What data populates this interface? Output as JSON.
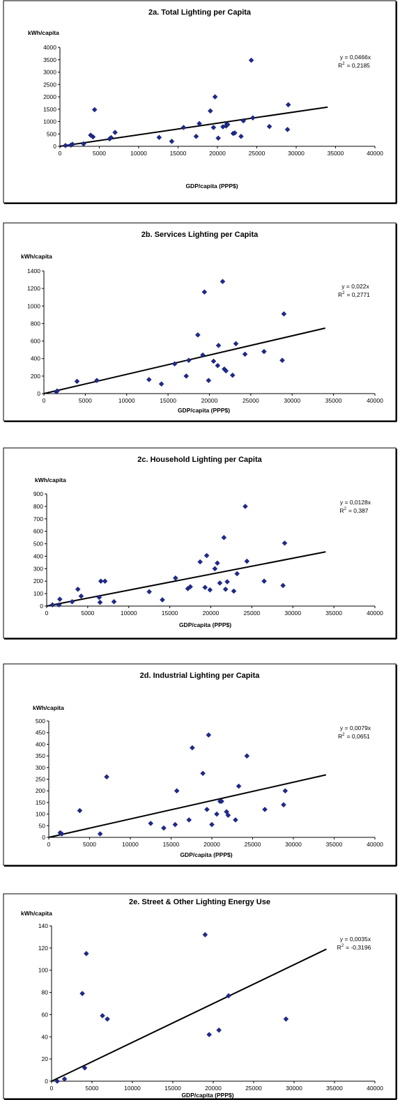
{
  "chart_data": [
    {
      "type": "scatter",
      "title": "2a.  Total  Lighting  per  Capita",
      "ylabel": "kWh/capita",
      "xlabel": "GDP/capita    (PPP$)",
      "xlim": [
        0,
        40000
      ],
      "ylim": [
        0,
        4000
      ],
      "xticks": [
        "0",
        "5000",
        "10000",
        "15000",
        "20000",
        "25000",
        "30000",
        "35000",
        "40000"
      ],
      "yticks": [
        "0",
        "500",
        "1000",
        "1500",
        "2000",
        "2500",
        "3000",
        "3500",
        "4000"
      ],
      "trendline": {
        "slope": 0.0466,
        "x_end": 34000,
        "eq": "y  =  0,0466x",
        "r2": "= 0,2185"
      },
      "grid": false,
      "points": [
        [
          700,
          30
        ],
        [
          1400,
          50
        ],
        [
          1600,
          80
        ],
        [
          3000,
          100
        ],
        [
          3900,
          450
        ],
        [
          4200,
          380
        ],
        [
          4400,
          1480
        ],
        [
          6300,
          300
        ],
        [
          6500,
          350
        ],
        [
          7000,
          560
        ],
        [
          12600,
          360
        ],
        [
          14200,
          200
        ],
        [
          15700,
          760
        ],
        [
          17300,
          400
        ],
        [
          17700,
          920
        ],
        [
          19100,
          1430
        ],
        [
          19500,
          760
        ],
        [
          19700,
          2000
        ],
        [
          20100,
          330
        ],
        [
          20700,
          790
        ],
        [
          21100,
          820
        ],
        [
          21200,
          900
        ],
        [
          21300,
          880
        ],
        [
          22000,
          520
        ],
        [
          22200,
          540
        ],
        [
          23000,
          400
        ],
        [
          23300,
          1030
        ],
        [
          24300,
          3480
        ],
        [
          24500,
          1150
        ],
        [
          26600,
          800
        ],
        [
          28900,
          680
        ],
        [
          29000,
          1680
        ]
      ]
    },
    {
      "type": "scatter",
      "title": "2b.  Services  Lighting  per  Capita",
      "ylabel": "kWh/capita",
      "xlabel": "GDP/capita    (PPP$)",
      "xlim": [
        0,
        40000
      ],
      "ylim": [
        0,
        1400
      ],
      "xticks": [
        "0",
        "5000",
        "10000",
        "15000",
        "20000",
        "25000",
        "30000",
        "35000",
        "40000"
      ],
      "yticks": [
        "0",
        "200",
        "400",
        "600",
        "800",
        "1000",
        "1200",
        "1400"
      ],
      "trendline": {
        "slope": 0.022,
        "x_end": 34000,
        "eq": "y  =  0,022x",
        "r2": "= 0,2771"
      },
      "grid": false,
      "points": [
        [
          1500,
          20
        ],
        [
          1600,
          30
        ],
        [
          4000,
          140
        ],
        [
          6400,
          150
        ],
        [
          12700,
          160
        ],
        [
          14200,
          110
        ],
        [
          15800,
          340
        ],
        [
          17200,
          200
        ],
        [
          17500,
          380
        ],
        [
          18600,
          670
        ],
        [
          19200,
          440
        ],
        [
          19400,
          1160
        ],
        [
          19900,
          150
        ],
        [
          20500,
          370
        ],
        [
          21000,
          320
        ],
        [
          21100,
          550
        ],
        [
          21600,
          1280
        ],
        [
          21800,
          280
        ],
        [
          22000,
          260
        ],
        [
          22800,
          210
        ],
        [
          23200,
          570
        ],
        [
          24300,
          450
        ],
        [
          26600,
          480
        ],
        [
          28800,
          380
        ],
        [
          29000,
          910
        ]
      ]
    },
    {
      "type": "scatter",
      "title": "2c.  Household  Lighting  per  Capita",
      "ylabel": "kWh/capita",
      "xlabel": "GDP/capita    (PPP$)",
      "xlim": [
        0,
        40000
      ],
      "ylim": [
        0,
        900
      ],
      "xticks": [
        "0",
        "5000",
        "10000",
        "15000",
        "20000",
        "25000",
        "30000",
        "35000",
        "40000"
      ],
      "yticks": [
        "0",
        "100",
        "200",
        "300",
        "400",
        "500",
        "600",
        "700",
        "800",
        "900"
      ],
      "trendline": {
        "slope": 0.0128,
        "x_end": 34000,
        "eq": "y  =  0,0128x",
        "r2": "= 0,387"
      },
      "grid": false,
      "points": [
        [
          700,
          10
        ],
        [
          1500,
          10
        ],
        [
          1600,
          55
        ],
        [
          3100,
          35
        ],
        [
          3800,
          135
        ],
        [
          4200,
          80
        ],
        [
          6400,
          70
        ],
        [
          6500,
          30
        ],
        [
          6600,
          200
        ],
        [
          7100,
          200
        ],
        [
          8200,
          35
        ],
        [
          12500,
          115
        ],
        [
          14100,
          50
        ],
        [
          15700,
          225
        ],
        [
          17200,
          140
        ],
        [
          17500,
          155
        ],
        [
          18700,
          355
        ],
        [
          19300,
          150
        ],
        [
          19500,
          405
        ],
        [
          19900,
          130
        ],
        [
          20500,
          300
        ],
        [
          20800,
          345
        ],
        [
          21100,
          185
        ],
        [
          21600,
          550
        ],
        [
          21800,
          135
        ],
        [
          22000,
          195
        ],
        [
          22800,
          120
        ],
        [
          23200,
          260
        ],
        [
          24200,
          800
        ],
        [
          24400,
          360
        ],
        [
          26500,
          200
        ],
        [
          28800,
          165
        ],
        [
          29000,
          505
        ]
      ]
    },
    {
      "type": "scatter",
      "title": "2d.  Industrial  Lighting  per  Capita",
      "ylabel": "kWh/capita",
      "xlabel": "GDP/capita    (PPP$)",
      "xlim": [
        0,
        40000
      ],
      "ylim": [
        0,
        500
      ],
      "xticks": [
        "0",
        "5000",
        "10000",
        "15000",
        "20000",
        "25000",
        "30000",
        "35000",
        "40000"
      ],
      "yticks": [
        "0",
        "50",
        "100",
        "150",
        "200",
        "250",
        "300",
        "350",
        "400",
        "450",
        "500"
      ],
      "trendline": {
        "slope": 0.0079,
        "x_end": 34000,
        "eq": "y  =  0,0079x",
        "r2": "= 0,0651"
      },
      "grid": false,
      "points": [
        [
          1400,
          20
        ],
        [
          1600,
          15
        ],
        [
          3800,
          115
        ],
        [
          6300,
          15
        ],
        [
          7100,
          260
        ],
        [
          12500,
          60
        ],
        [
          14100,
          40
        ],
        [
          15500,
          55
        ],
        [
          15700,
          200
        ],
        [
          17200,
          75
        ],
        [
          17600,
          385
        ],
        [
          18900,
          275
        ],
        [
          19400,
          120
        ],
        [
          19600,
          440
        ],
        [
          20000,
          55
        ],
        [
          20600,
          100
        ],
        [
          21000,
          155
        ],
        [
          21200,
          155
        ],
        [
          21800,
          110
        ],
        [
          22000,
          95
        ],
        [
          22900,
          75
        ],
        [
          23300,
          220
        ],
        [
          24300,
          350
        ],
        [
          26500,
          120
        ],
        [
          28800,
          140
        ],
        [
          29000,
          200
        ]
      ]
    },
    {
      "type": "scatter",
      "title": "2e.  Street  &  Other  Lighting  Energy  Use",
      "ylabel": "kWh/capita",
      "xlabel": "GDP/capita    (PPP$)",
      "xlim": [
        0,
        40000
      ],
      "ylim": [
        0,
        140
      ],
      "xticks": [
        "0",
        "5000",
        "10000",
        "15000",
        "20000",
        "25000",
        "30000",
        "35000",
        "40000"
      ],
      "yticks": [
        "0",
        "20",
        "40",
        "60",
        "80",
        "100",
        "120",
        "140"
      ],
      "trendline": {
        "slope": 0.0035,
        "x_end": 34000,
        "eq": "y  =  0,0035x",
        "r2": "= -0,3196"
      },
      "grid": false,
      "points": [
        [
          700,
          0
        ],
        [
          1600,
          2
        ],
        [
          3800,
          79
        ],
        [
          4100,
          12
        ],
        [
          4300,
          115
        ],
        [
          6300,
          59
        ],
        [
          6900,
          56
        ],
        [
          19000,
          132
        ],
        [
          19500,
          42
        ],
        [
          20700,
          46
        ],
        [
          21900,
          77
        ],
        [
          29000,
          56
        ]
      ]
    }
  ]
}
